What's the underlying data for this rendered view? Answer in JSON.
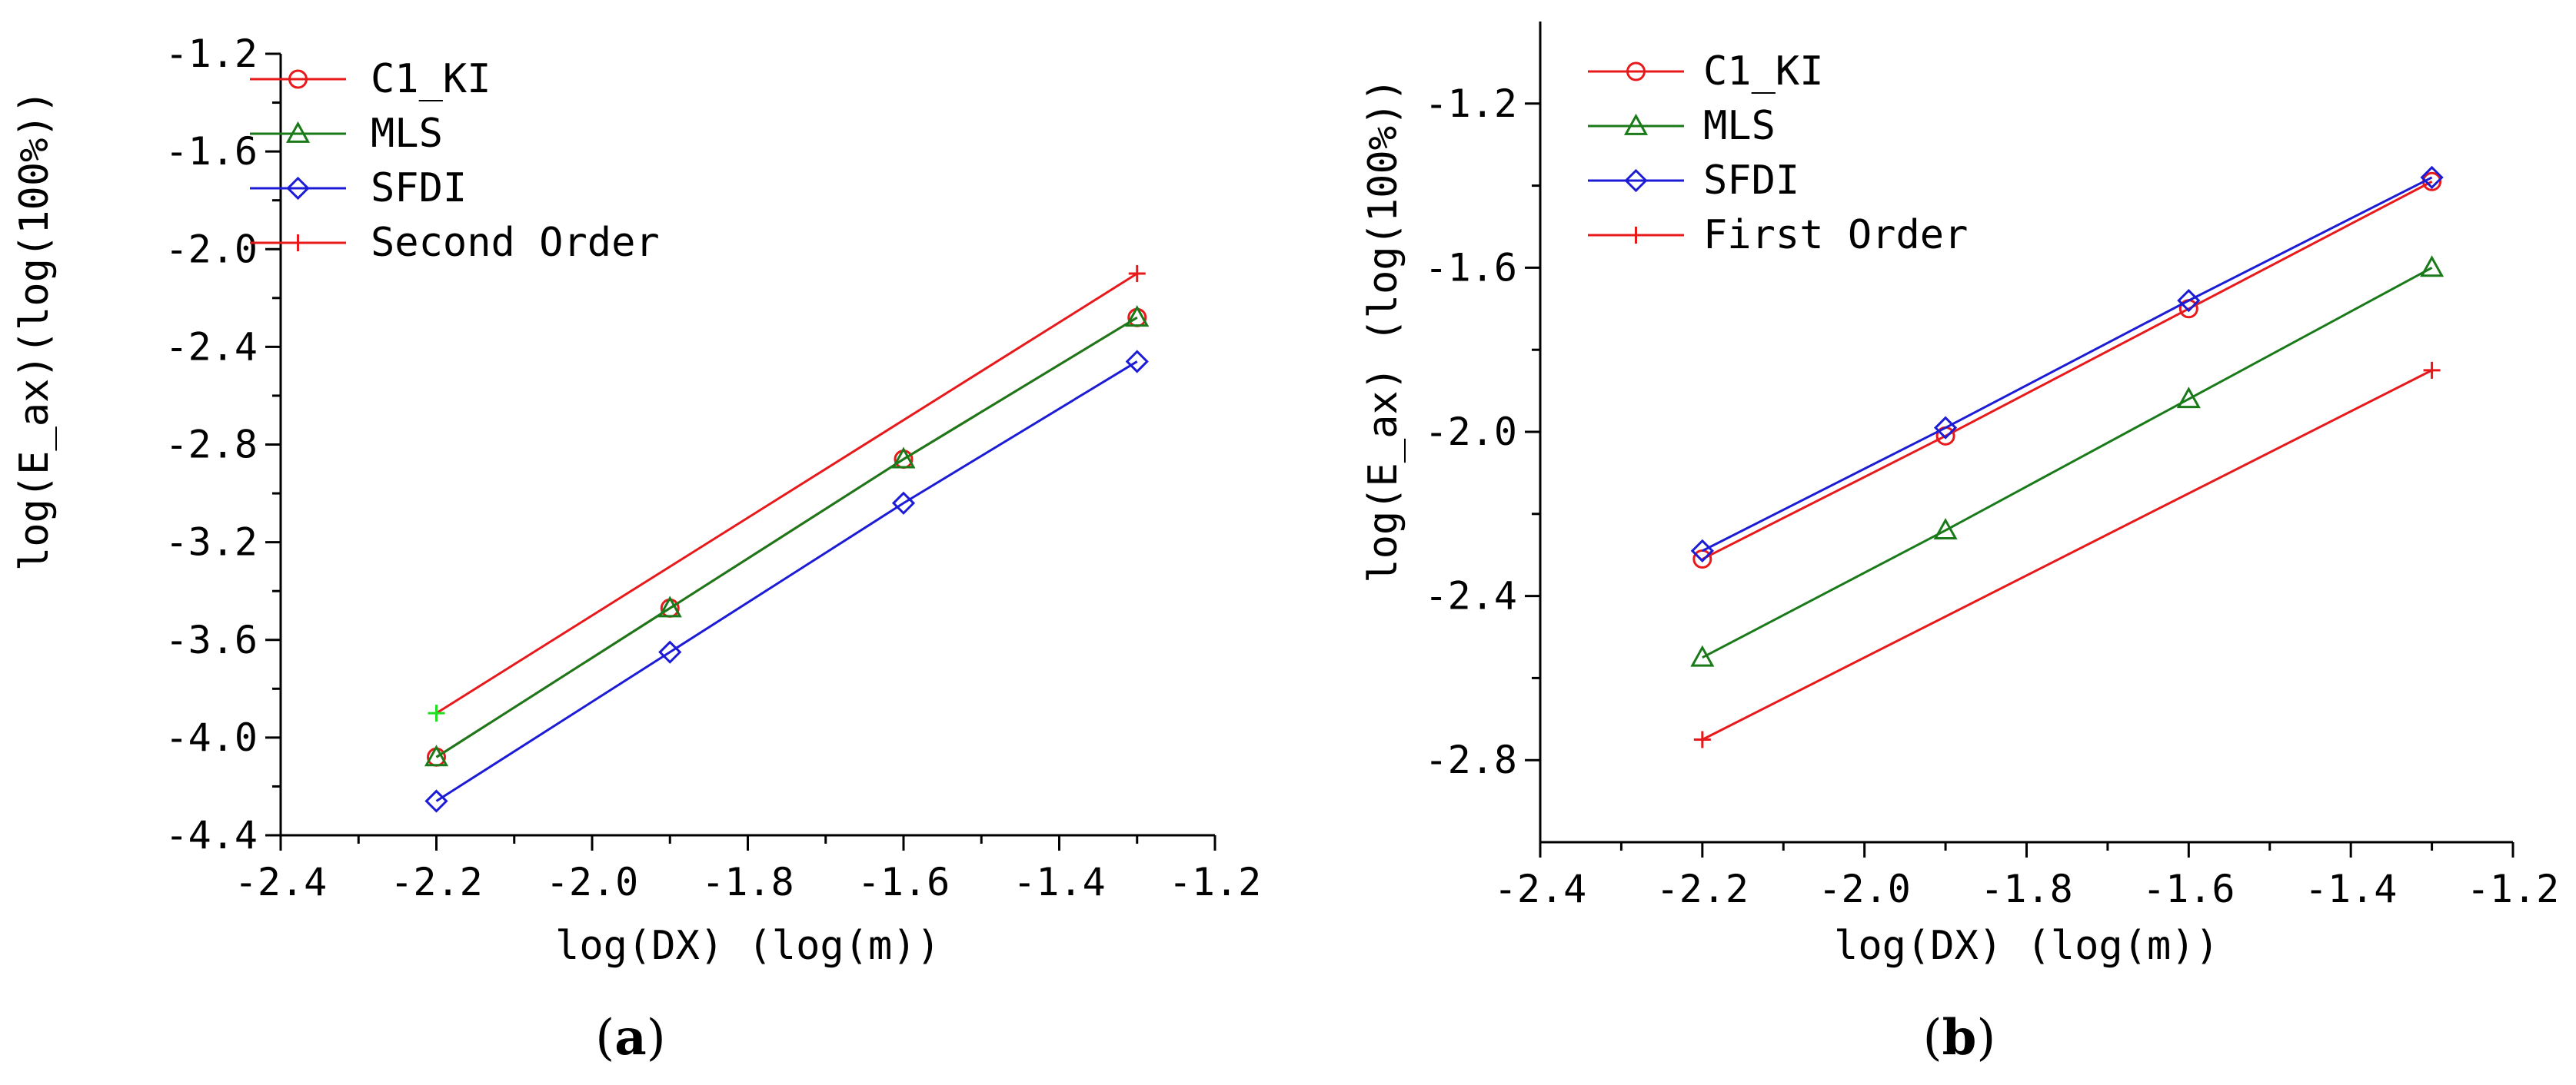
{
  "chart_data": [
    {
      "panel": "a",
      "panel_label": {
        "open": "(",
        "letter": "a",
        "close": ")"
      },
      "type": "line",
      "xlabel": "log(DX) (log(m))",
      "ylabel": "log(E_ax)(log(100%))",
      "xlim": [
        -2.4,
        -1.2
      ],
      "ylim": [
        -4.4,
        -1.2
      ],
      "xticks": [
        -2.4,
        -2.2,
        -2.0,
        -1.8,
        -1.6,
        -1.4,
        -1.2
      ],
      "xtick_labels": [
        "-2.4",
        "-2.2",
        "-2.0",
        "-1.8",
        "-1.6",
        "-1.4",
        "-1.2"
      ],
      "yticks": [
        -4.4,
        -4.0,
        -3.6,
        -3.2,
        -2.8,
        -2.4,
        -2.0,
        -1.6,
        -1.2
      ],
      "ytick_labels": [
        "-4.4",
        "-4.0",
        "-3.6",
        "-3.2",
        "-2.8",
        "-2.4",
        "-2.0",
        "-1.6",
        "-1.2"
      ],
      "legend_position": "top-left",
      "series": [
        {
          "name": "C1_KI",
          "color": "#e8191b",
          "marker": "circle",
          "x": [
            -2.2,
            -1.9,
            -1.6,
            -1.3
          ],
          "y": [
            -4.08,
            -3.47,
            -2.86,
            -2.28
          ]
        },
        {
          "name": "MLS",
          "color": "#1a7a1a",
          "marker": "triangle",
          "x": [
            -2.2,
            -1.9,
            -1.6,
            -1.3
          ],
          "y": [
            -4.08,
            -3.47,
            -2.86,
            -2.28
          ]
        },
        {
          "name": "SFDI",
          "color": "#1c1cd6",
          "marker": "diamond",
          "x": [
            -2.2,
            -1.9,
            -1.6,
            -1.3
          ],
          "y": [
            -4.26,
            -3.65,
            -3.04,
            -2.46
          ]
        },
        {
          "name": "Second Order",
          "color": "#e8191b",
          "marker": "plus",
          "first_marker_color": "#22dd22",
          "x": [
            -2.2,
            -1.3
          ],
          "y": [
            -3.9,
            -2.1
          ]
        }
      ]
    },
    {
      "panel": "b",
      "panel_label": {
        "open": "(",
        "letter": "b",
        "close": ")"
      },
      "type": "line",
      "xlabel": "log(DX) (log(m))",
      "ylabel": "log(E_ax) (log(100%))",
      "xlim": [
        -2.4,
        -1.2
      ],
      "ylim": [
        -3.0,
        -1.0
      ],
      "xticks": [
        -2.4,
        -2.2,
        -2.0,
        -1.8,
        -1.6,
        -1.4,
        -1.2
      ],
      "xtick_labels": [
        "-2.4",
        "-2.2",
        "-2.0",
        "-1.8",
        "-1.6",
        "-1.4",
        "-1.2"
      ],
      "yticks": [
        -2.8,
        -2.4,
        -2.0,
        -1.6,
        -1.2
      ],
      "ytick_labels": [
        "-2.8",
        "-2.4",
        "-2.0",
        "-1.6",
        "-1.2"
      ],
      "legend_position": "top-left",
      "series": [
        {
          "name": "C1_KI",
          "color": "#e8191b",
          "marker": "circle",
          "x": [
            -2.2,
            -1.9,
            -1.6,
            -1.3
          ],
          "y": [
            -2.31,
            -2.01,
            -1.7,
            -1.39
          ]
        },
        {
          "name": "MLS",
          "color": "#1a7a1a",
          "marker": "triangle",
          "x": [
            -2.2,
            -1.9,
            -1.6,
            -1.3
          ],
          "y": [
            -2.55,
            -2.24,
            -1.92,
            -1.6
          ]
        },
        {
          "name": "SFDI",
          "color": "#1c1cd6",
          "marker": "diamond",
          "x": [
            -2.2,
            -1.9,
            -1.6,
            -1.3
          ],
          "y": [
            -2.29,
            -1.99,
            -1.68,
            -1.38
          ]
        },
        {
          "name": "First Order",
          "color": "#e8191b",
          "marker": "plus",
          "x": [
            -2.2,
            -1.3
          ],
          "y": [
            -2.75,
            -1.85
          ]
        }
      ]
    }
  ]
}
